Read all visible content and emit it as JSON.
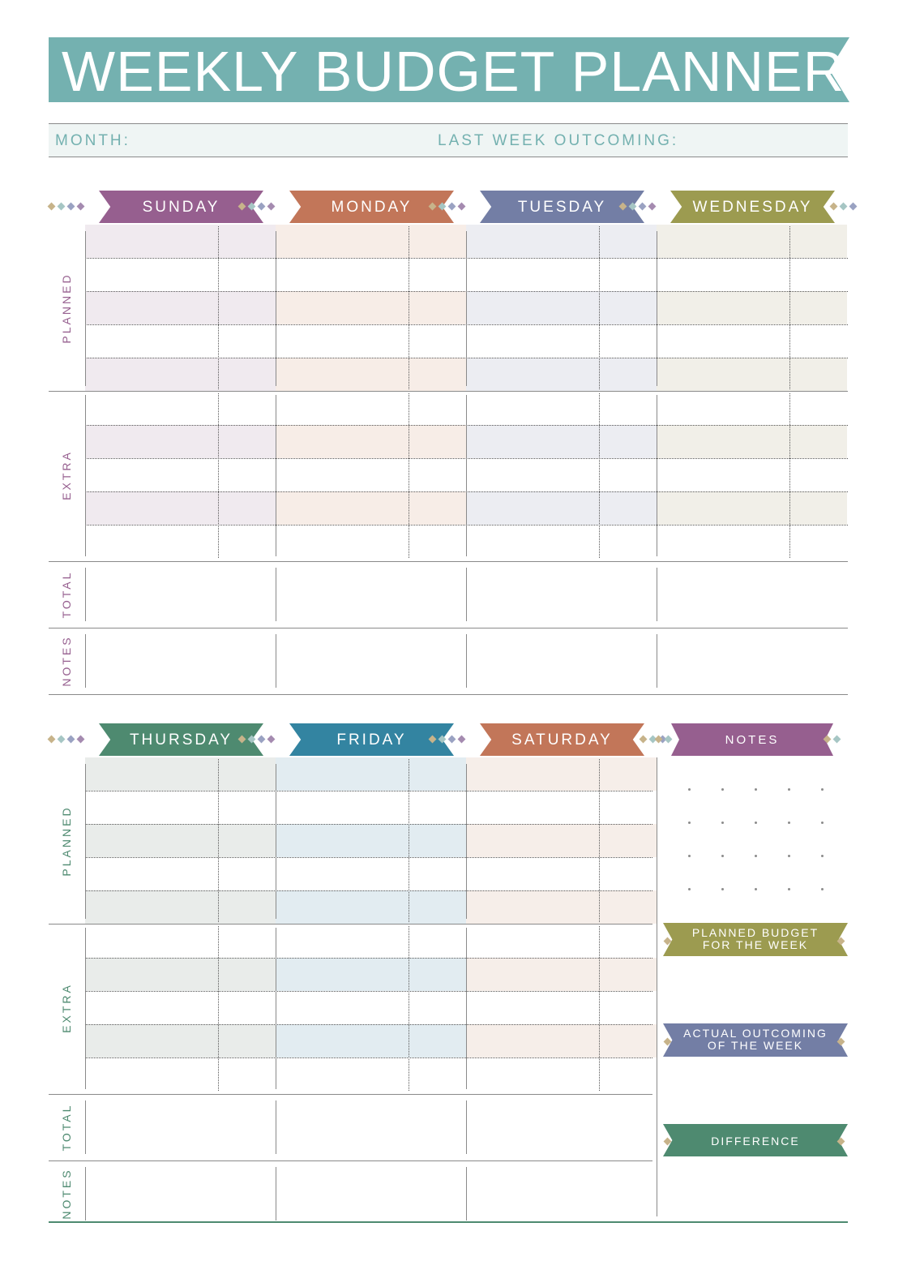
{
  "title": "WEEKLY BUDGET PLANNER",
  "info": {
    "month_label": "MONTH:",
    "last_week_label": "LAST WEEK OUTCOMING:"
  },
  "sections": {
    "planned": "PLANNED",
    "extra": "EXTRA",
    "total": "TOTAL",
    "notes": "NOTES"
  },
  "week1": {
    "days": [
      {
        "name": "SUNDAY",
        "color": "#965f8f",
        "tint": "#f0eaef"
      },
      {
        "name": "MONDAY",
        "color": "#c27659",
        "tint": "#f7ede7"
      },
      {
        "name": "TUESDAY",
        "color": "#737ea5",
        "tint": "#ecedf2"
      },
      {
        "name": "WEDNESDAY",
        "color": "#9c9b50",
        "tint": "#f1efe8"
      }
    ]
  },
  "week2": {
    "days": [
      {
        "name": "THURSDAY",
        "color": "#4e8a70",
        "tint": "#e9ecea"
      },
      {
        "name": "FRIDAY",
        "color": "#3384a1",
        "tint": "#e2ecf1"
      },
      {
        "name": "SATURDAY",
        "color": "#c27659",
        "tint": "#f6eee9"
      }
    ]
  },
  "side": {
    "notes_label": "NOTES",
    "planned_budget_label": "PLANNED BUDGET FOR THE WEEK",
    "actual_outcoming_label": "ACTUAL OUTCOMING OF THE WEEK",
    "difference_label": "DIFFERENCE"
  },
  "colors": {
    "teal": "#74b1b0",
    "purple": "#965f8f",
    "olive": "#9c9b50",
    "slate": "#737ea5",
    "green": "#4e8a70",
    "rust": "#c27659",
    "blue": "#3384a1"
  }
}
